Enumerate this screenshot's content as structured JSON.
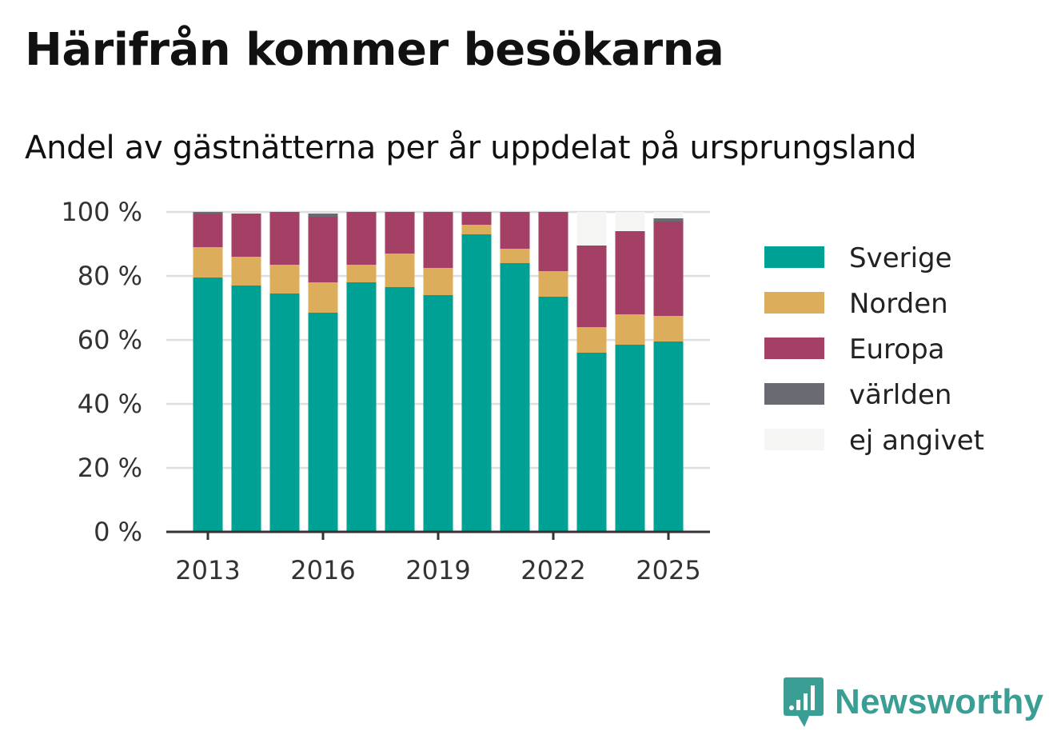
{
  "title": "Härifrån kommer besökarna",
  "subtitle": "Andel av gästnätterna per år uppdelat på ursprungsland",
  "brand": {
    "name": "Newsworthy",
    "color": "#3a9e94",
    "icon": "chart-speech-bubble-icon"
  },
  "chart_data": {
    "type": "bar",
    "stacked": true,
    "x": [
      2013,
      2014,
      2015,
      2016,
      2017,
      2018,
      2019,
      2020,
      2021,
      2022,
      2023,
      2024,
      2025
    ],
    "x_tick_labels": [
      "2013",
      "2016",
      "2019",
      "2022",
      "2025"
    ],
    "y_tick_labels": [
      "0 %",
      "20 %",
      "40 %",
      "60 %",
      "80 %",
      "100 %"
    ],
    "y_ticks": [
      0,
      20,
      40,
      60,
      80,
      100
    ],
    "ylim": [
      0,
      100
    ],
    "grid": true,
    "legend_position": "right",
    "series": [
      {
        "name": "Sverige",
        "color": "#00a195",
        "values": [
          79.5,
          77,
          74.5,
          68.5,
          78,
          76.5,
          74,
          93,
          84,
          73.5,
          56,
          58.5,
          59.5
        ]
      },
      {
        "name": "Norden",
        "color": "#dcad5a",
        "values": [
          9.5,
          9,
          9,
          9.5,
          5.5,
          10.5,
          8.5,
          3,
          4.5,
          8,
          8,
          9.5,
          8
        ]
      },
      {
        "name": "Europa",
        "color": "#a43f66",
        "values": [
          10.5,
          13.5,
          16.5,
          20.5,
          16.5,
          13,
          17.5,
          4,
          11.5,
          18.5,
          25.5,
          26,
          29.5
        ]
      },
      {
        "name": "världen",
        "color": "#6a6b72",
        "values": [
          0.5,
          0,
          0,
          1,
          0,
          0,
          0,
          0,
          0,
          0,
          0,
          0,
          1
        ]
      },
      {
        "name": "ej angivet",
        "color": "#f5f5f3",
        "values": [
          0,
          0,
          0,
          0,
          0,
          0,
          0,
          0,
          0,
          0,
          10.5,
          6,
          2
        ]
      }
    ]
  }
}
